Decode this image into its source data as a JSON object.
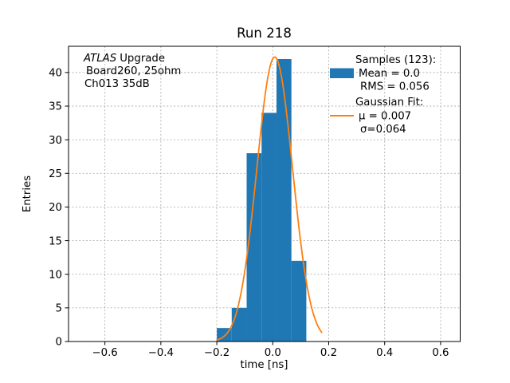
{
  "title": "Run 218",
  "axes": {
    "xlabel": "time [ns]",
    "ylabel": "Entries"
  },
  "annotation": {
    "line1_italic": "ATLAS",
    "line1_rest": "Upgrade",
    "line2": "Board260, 25ohm",
    "line3": "Ch013 35dB"
  },
  "legend": {
    "samples_header": "Samples (123):",
    "mean_label": "Mean = 0.0",
    "rms_label": "RMS = 0.056",
    "fit_header": "Gaussian Fit:",
    "mu_label": "μ = 0.007",
    "sigma_label": "σ=0.064"
  },
  "colors": {
    "histogram": "#1f77b4",
    "fit_line": "#ff7f0e",
    "grid": "#b0b0b0",
    "text": "#000000"
  },
  "chart_data": {
    "type": "bar",
    "title": "Run 218",
    "xlabel": "time [ns]",
    "ylabel": "Entries",
    "xlim": [
      -0.73,
      0.67
    ],
    "ylim": [
      0,
      43.9
    ],
    "xticks": [
      -0.6,
      -0.4,
      -0.2,
      0.0,
      0.2,
      0.4,
      0.6
    ],
    "yticks": [
      0,
      5,
      10,
      15,
      20,
      25,
      30,
      35,
      40
    ],
    "grid": true,
    "legend_position": "upper right",
    "histogram": {
      "bin_edges": [
        -0.2,
        -0.14667,
        -0.09333,
        -0.04,
        0.01333,
        0.06667,
        0.12
      ],
      "counts": [
        2,
        5,
        28,
        34,
        42,
        12
      ],
      "total_samples": 123,
      "mean": 0.0,
      "rms": 0.056
    },
    "gaussian_fit": {
      "amplitude": 42.3,
      "mu": 0.007,
      "sigma": 0.064,
      "x_range": [
        -0.2,
        0.175
      ]
    }
  }
}
